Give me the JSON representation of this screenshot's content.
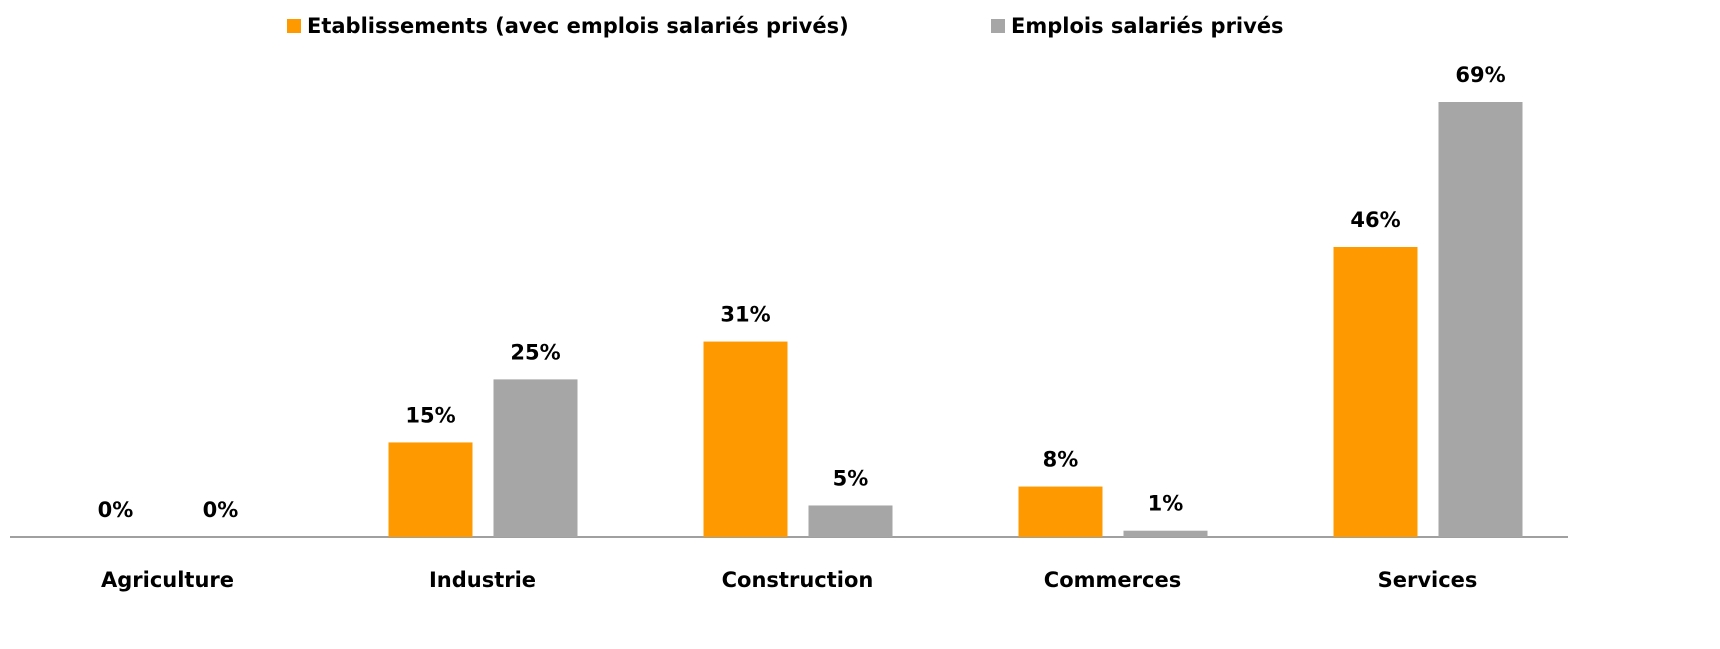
{
  "chart_data": {
    "type": "bar",
    "categories": [
      "Agriculture",
      "Industrie",
      "Construction",
      "Commerces",
      "Services"
    ],
    "series": [
      {
        "name": "Etablissements (avec emplois salariés privés)",
        "color": "#ff9900",
        "values": [
          0,
          15,
          31,
          8,
          46
        ],
        "value_labels": [
          "0%",
          "15%",
          "31%",
          "8%",
          "46%"
        ]
      },
      {
        "name": "Emplois salariés privés",
        "color": "#a6a6a6",
        "values": [
          0,
          25,
          5,
          1,
          69
        ],
        "value_labels": [
          "0%",
          "25%",
          "5%",
          "1%",
          "69%"
        ]
      }
    ],
    "legend": "top"
  }
}
